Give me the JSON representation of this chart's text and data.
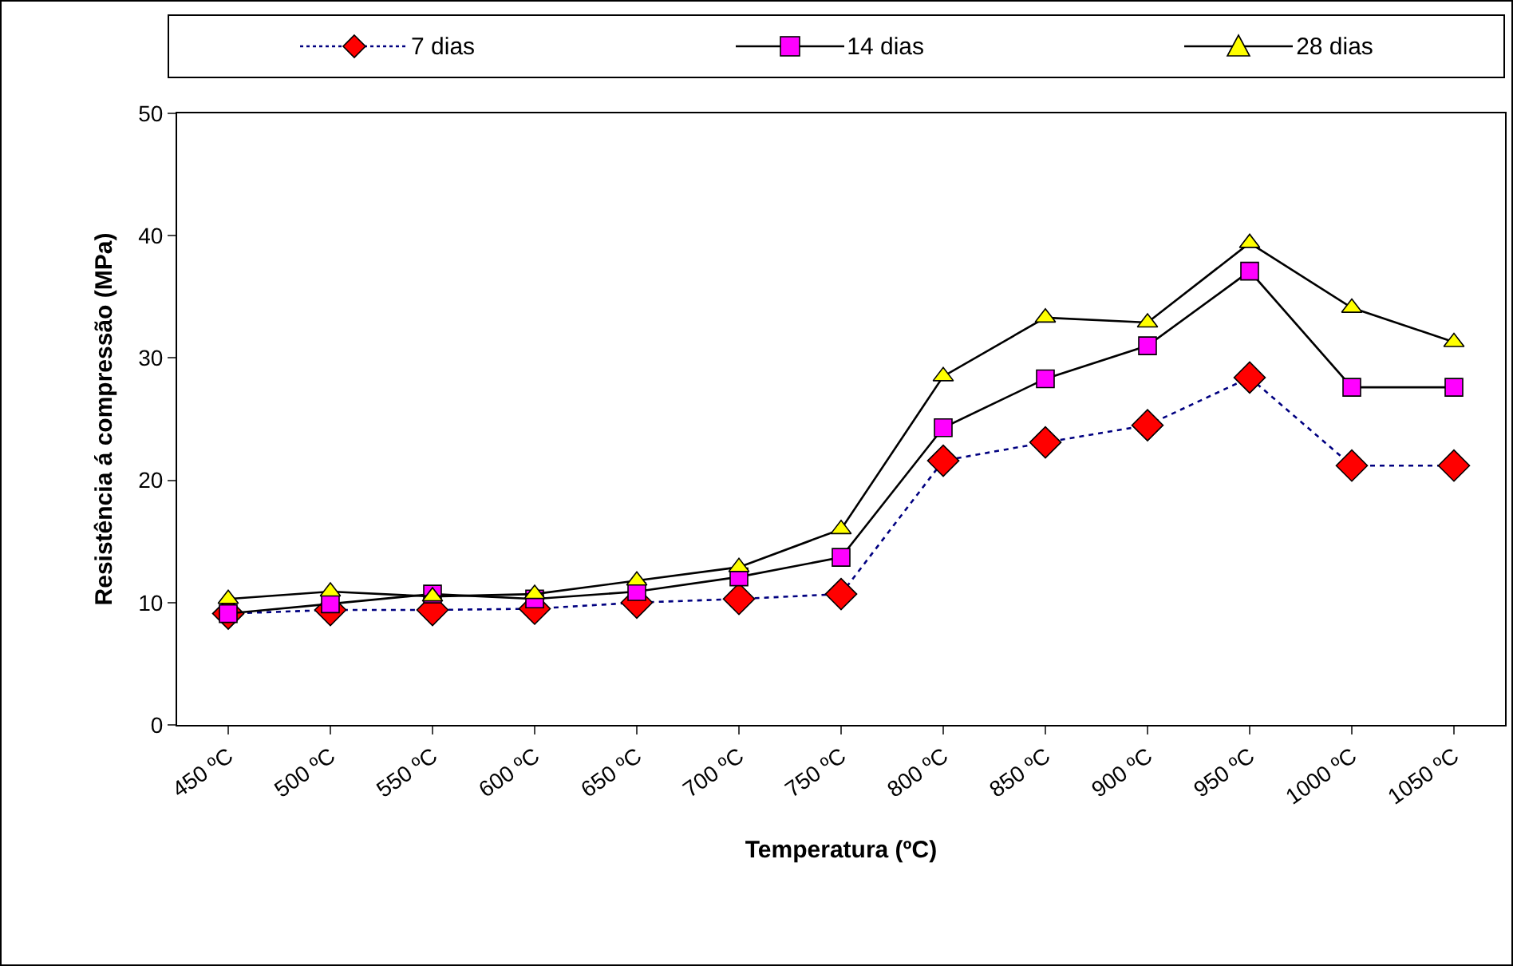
{
  "chart_data": {
    "type": "line",
    "xlabel": "Temperatura (ºC)",
    "ylabel": "Resistência á compressão (MPa)",
    "categories": [
      "450 ºC",
      "500 ºC",
      "550 ºC",
      "600 ºC",
      "650 ºC",
      "700 ºC",
      "750 ºC",
      "800 ºC",
      "850 ºC",
      "900 ºC",
      "950 ºC",
      "1000 ºC",
      "1050 ºC"
    ],
    "ylim": [
      0,
      50
    ],
    "yticks": [
      0,
      10,
      20,
      30,
      40,
      50
    ],
    "grid": false,
    "legend": "top",
    "series": [
      {
        "name": "7 dias",
        "color": "#ff0000",
        "marker": "diamond",
        "line_style": "dotted",
        "values": [
          9.1,
          9.4,
          9.4,
          9.5,
          10.0,
          10.3,
          10.7,
          21.6,
          23.1,
          24.5,
          28.4,
          21.2,
          21.2
        ]
      },
      {
        "name": "14 dias",
        "color": "#ff00ff",
        "marker": "square",
        "line_style": "solid",
        "values": [
          9.1,
          9.9,
          10.7,
          10.3,
          10.9,
          12.1,
          13.7,
          24.3,
          28.3,
          31.0,
          37.1,
          27.6,
          27.6
        ]
      },
      {
        "name": "28 dias",
        "color": "#ffff00",
        "marker": "triangle",
        "line_style": "solid",
        "values": [
          10.3,
          10.9,
          10.5,
          10.7,
          11.8,
          12.9,
          16.0,
          28.5,
          33.3,
          32.9,
          39.4,
          34.1,
          31.3
        ]
      }
    ]
  }
}
